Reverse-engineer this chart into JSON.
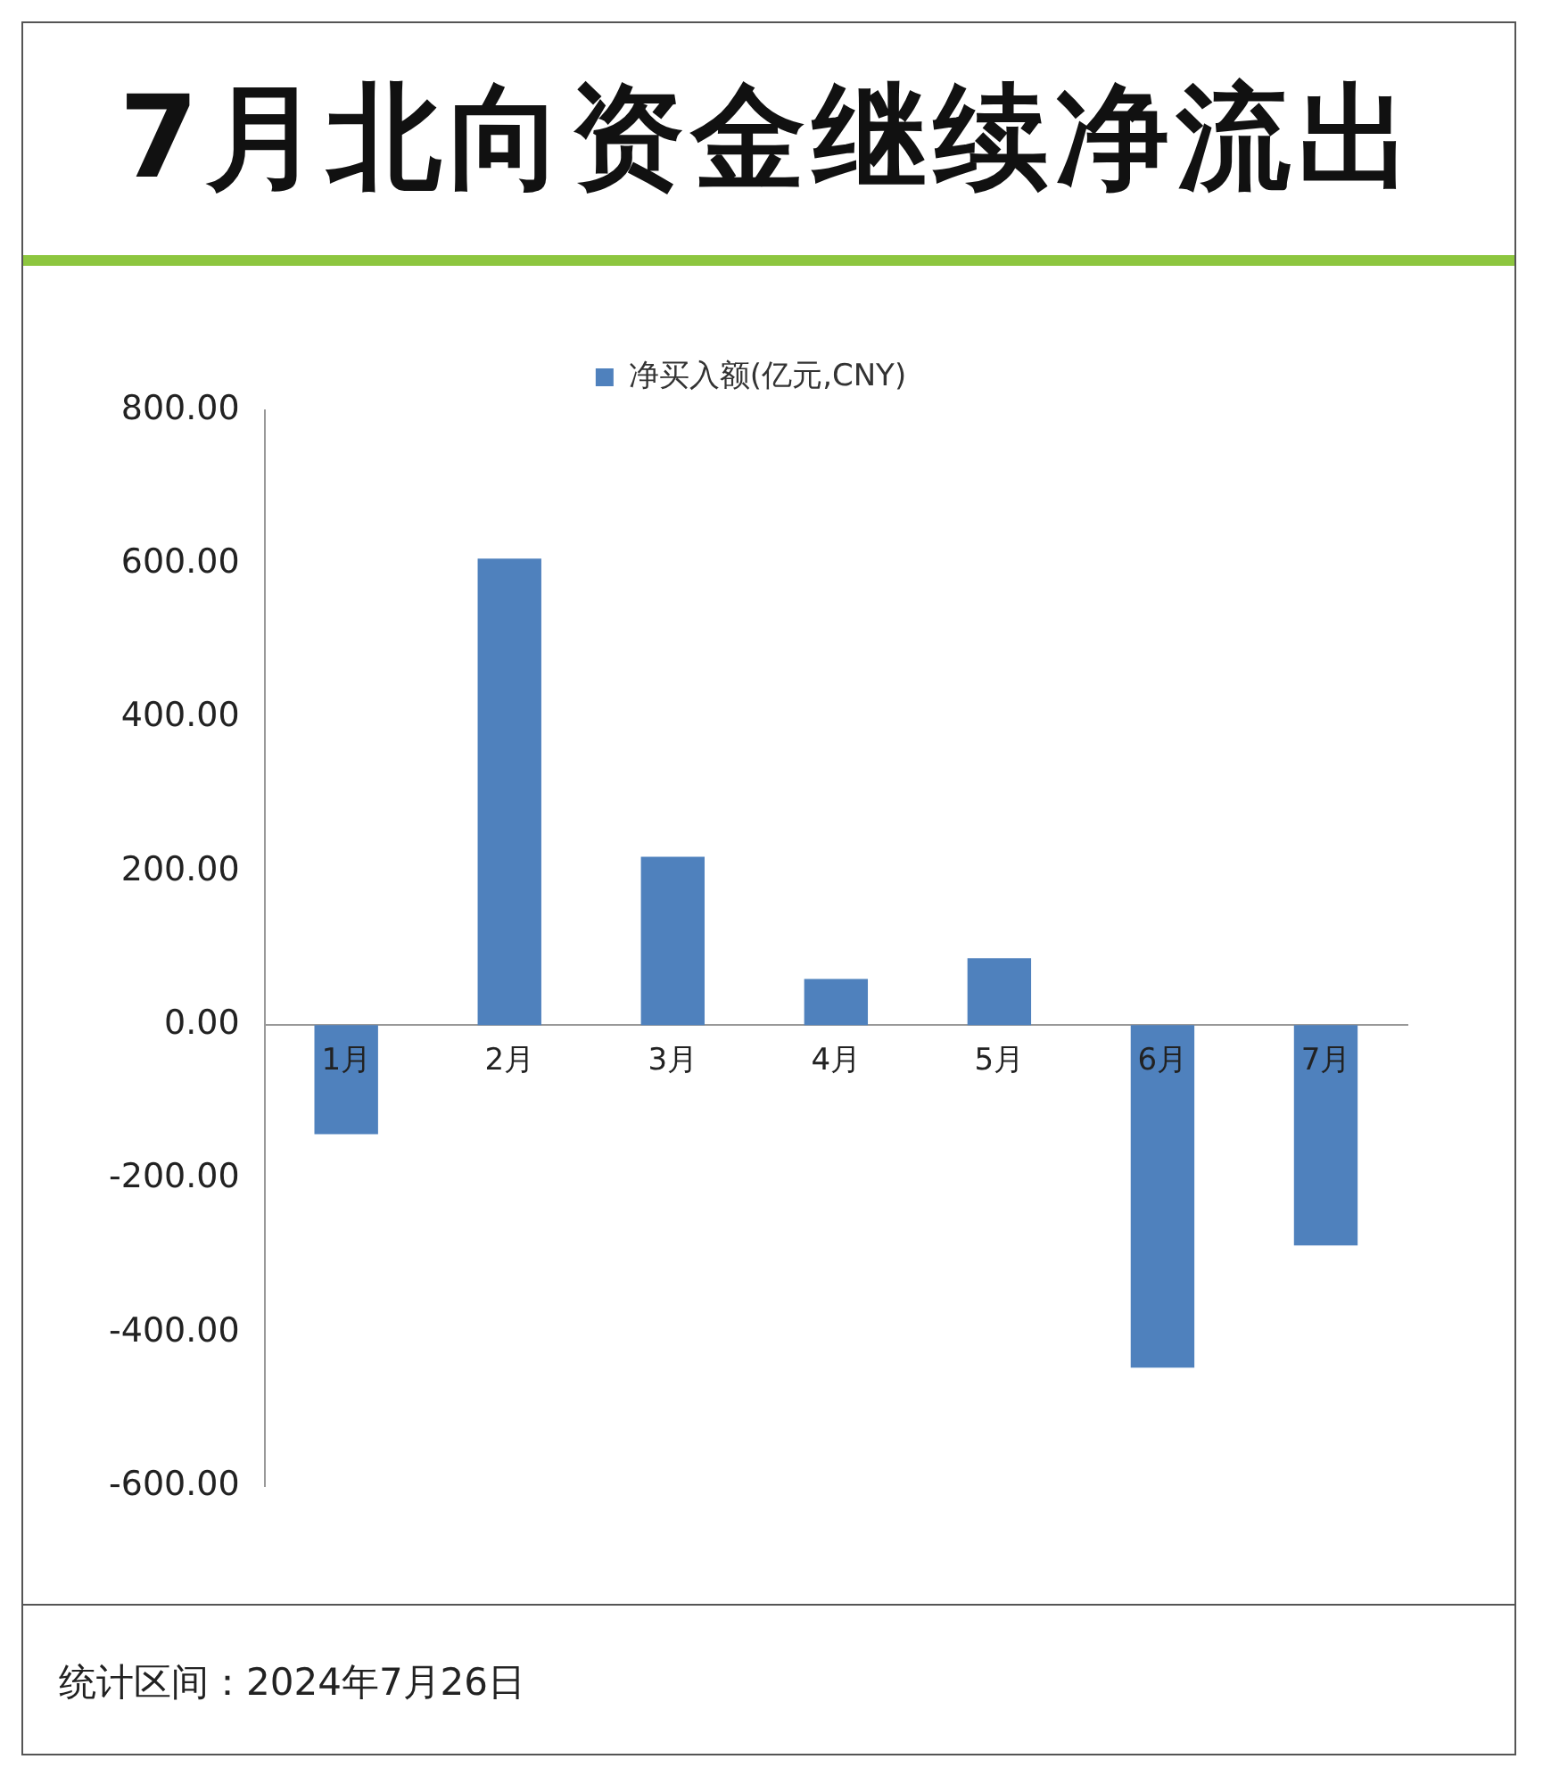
{
  "chart_data": {
    "type": "bar",
    "title": "7月北向资金继续净流出",
    "categories": [
      "1月",
      "2月",
      "3月",
      "4月",
      "5月",
      "6月",
      "7月"
    ],
    "series": [
      {
        "name": "净买入额(亿元,CNY)",
        "color": "#4f81bd",
        "values": [
          -142,
          607,
          219,
          60,
          87,
          -446,
          -287
        ]
      }
    ],
    "ylim": [
      -600,
      800
    ],
    "yticks": [
      {
        "value": -600,
        "label": "-600.00"
      },
      {
        "value": -400,
        "label": "-400.00"
      },
      {
        "value": -200,
        "label": "-200.00"
      },
      {
        "value": 0,
        "label": "0.00"
      },
      {
        "value": 200,
        "label": "200.00"
      },
      {
        "value": 400,
        "label": "400.00"
      },
      {
        "value": 600,
        "label": "600.00"
      },
      {
        "value": 800,
        "label": "800.00"
      }
    ],
    "grid": false,
    "legend": "top",
    "annotations": [
      "统计区间：2024年7月26日"
    ]
  }
}
